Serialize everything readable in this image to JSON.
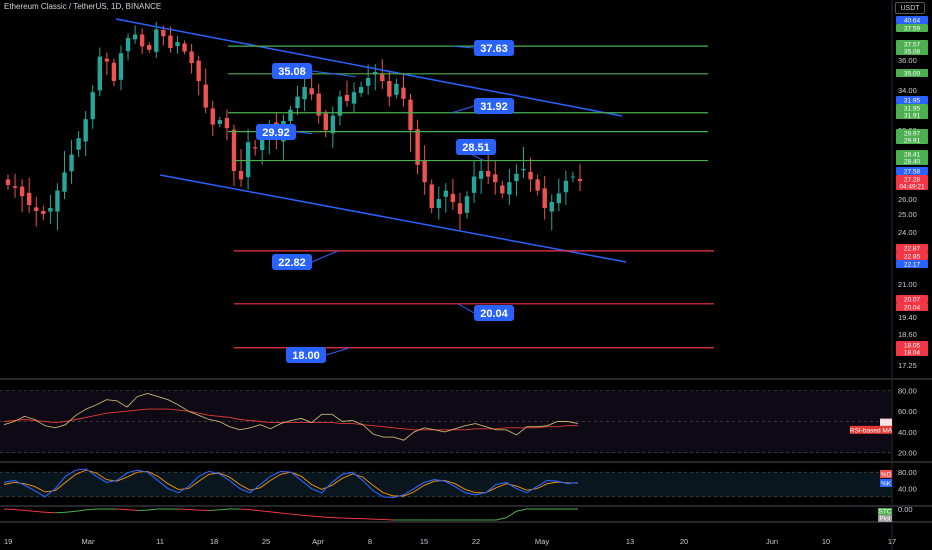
{
  "header": {
    "title": "Ethereum Classic / TetherUS, 1D, BINANCE",
    "currency": "USDT"
  },
  "colors": {
    "up": "#26a69a",
    "down": "#ef5350",
    "trend": "#2962ff",
    "resistance": "#4caf50",
    "support": "#f23645",
    "label_bg": "#2962ff",
    "rsi_line": "#c8b46a",
    "rsi_ma": "#e53935",
    "stoch_k": "#2962ff",
    "stoch_d": "#ff9800"
  },
  "chart_data": {
    "type": "candlestick",
    "symbol": "ETC/USDT",
    "timeframe": "1D",
    "exchange": "BINANCE",
    "date_range": [
      "2024-02-19",
      "2024-05-09"
    ],
    "last_close": 27.28,
    "countdown": "04:49:21",
    "y_ticks": [
      40.0,
      38.0,
      36.0,
      34.0,
      32.0,
      30.0,
      28.0,
      26.0,
      25.0,
      24.0,
      22.0,
      21.0,
      19.4,
      18.6,
      17.25
    ],
    "x_ticks": [
      "19",
      "Mar",
      "11",
      "18",
      "25",
      "Apr",
      "8",
      "15",
      "22",
      "May",
      "13",
      "20",
      "Jun",
      "10",
      "17"
    ],
    "axis_tags": [
      {
        "value": "40.64",
        "color": "#2962ff"
      },
      {
        "value": "37.59",
        "color": "#4caf50"
      },
      {
        "value": "37.57",
        "color": "#4caf50"
      },
      {
        "value": "35.08",
        "color": "#4caf50"
      },
      {
        "value": "35.00",
        "color": "#4caf50"
      },
      {
        "value": "31.95",
        "color": "#2962ff"
      },
      {
        "value": "31.95",
        "color": "#4caf50"
      },
      {
        "value": "31.91",
        "color": "#4caf50"
      },
      {
        "value": "29.97",
        "color": "#4caf50"
      },
      {
        "value": "29.91",
        "color": "#4caf50"
      },
      {
        "value": "28.41",
        "color": "#4caf50"
      },
      {
        "value": "28.40",
        "color": "#4caf50"
      },
      {
        "value": "27.58",
        "color": "#2962ff"
      },
      {
        "value": "27.28",
        "color": "#f23645"
      },
      {
        "value": "04:49:21",
        "color": "#f23645"
      },
      {
        "value": "22.87",
        "color": "#f23645"
      },
      {
        "value": "22.85",
        "color": "#f23645"
      },
      {
        "value": "22.17",
        "color": "#2962ff"
      },
      {
        "value": "20.07",
        "color": "#f23645"
      },
      {
        "value": "20.04",
        "color": "#f23645"
      },
      {
        "value": "18.05",
        "color": "#f23645"
      },
      {
        "value": "18.04",
        "color": "#f23645"
      }
    ],
    "levels": {
      "resistance": [
        37.63,
        35.08,
        31.92,
        29.92,
        28.51
      ],
      "support": [
        22.82,
        20.04,
        18.0
      ]
    },
    "annotations": [
      "37.63",
      "35.08",
      "31.92",
      "29.92",
      "28.51",
      "22.82",
      "20.04",
      "18.00"
    ],
    "rsi": {
      "ticks": [
        80.0,
        60.0,
        40.0,
        20.0
      ],
      "labels": [
        "RSI",
        "RSI-based MA"
      ],
      "values": [
        47,
        50,
        55,
        52,
        46,
        44,
        47,
        56,
        62,
        66,
        71,
        70,
        64,
        74,
        77,
        74,
        71,
        66,
        60,
        56,
        52,
        50,
        45,
        42,
        44,
        47,
        43,
        48,
        51,
        53,
        49,
        57,
        57,
        50,
        51,
        47,
        38,
        35,
        35,
        32,
        40,
        44,
        42,
        40,
        43,
        46,
        48,
        45,
        42,
        42,
        37,
        45,
        45,
        46,
        50,
        50,
        48
      ],
      "ma": [
        50,
        51,
        52,
        51,
        50,
        49,
        50,
        52,
        54,
        56,
        58,
        59,
        60,
        61,
        62,
        62,
        62,
        61,
        60,
        58,
        56,
        55,
        54,
        52,
        51,
        50,
        49,
        49,
        49,
        49,
        49,
        49,
        49,
        48,
        48,
        47,
        46,
        45,
        44,
        43,
        42,
        42,
        42,
        42,
        42,
        42,
        43,
        43,
        43,
        44,
        44,
        44,
        44,
        45,
        45,
        46,
        46
      ]
    },
    "stoch_rsi": {
      "ticks": [
        80.0,
        40.0
      ],
      "labels": [
        "%D",
        "%K"
      ],
      "k": [
        55,
        60,
        48,
        35,
        20,
        40,
        70,
        85,
        88,
        70,
        55,
        60,
        78,
        85,
        80,
        60,
        40,
        30,
        45,
        70,
        82,
        76,
        60,
        40,
        30,
        50,
        70,
        82,
        80,
        60,
        40,
        30,
        55,
        75,
        80,
        60,
        35,
        20,
        18,
        25,
        40,
        55,
        62,
        58,
        45,
        30,
        25,
        30,
        50,
        55,
        40,
        30,
        45,
        60,
        58,
        52,
        55
      ],
      "d": [
        50,
        55,
        52,
        45,
        32,
        35,
        55,
        75,
        85,
        78,
        62,
        58,
        68,
        80,
        82,
        70,
        52,
        38,
        40,
        58,
        75,
        78,
        68,
        50,
        36,
        42,
        60,
        75,
        80,
        70,
        50,
        38,
        48,
        65,
        76,
        68,
        48,
        30,
        22,
        22,
        32,
        48,
        58,
        60,
        52,
        38,
        30,
        30,
        42,
        52,
        46,
        36,
        40,
        52,
        56,
        54,
        54
      ]
    },
    "stc": {
      "ticks": [
        0.0
      ],
      "labels": [
        "STC",
        "Plot"
      ],
      "values": [
        0,
        -5,
        -12,
        -22,
        -30,
        -34,
        -30,
        -20,
        -8,
        0,
        0,
        0,
        -6,
        -14,
        -10,
        0,
        0,
        0,
        -4,
        -10,
        -14,
        -8,
        0,
        0,
        -6,
        -16,
        -26,
        -36,
        -46,
        -56,
        -64,
        -72,
        -78,
        -82,
        -86,
        -88,
        -92,
        -96,
        -100,
        -100,
        -100,
        -100,
        -100,
        -100,
        -100,
        -100,
        -100,
        -100,
        -100,
        -80,
        -20,
        0,
        0,
        0,
        0,
        0,
        0
      ]
    }
  }
}
